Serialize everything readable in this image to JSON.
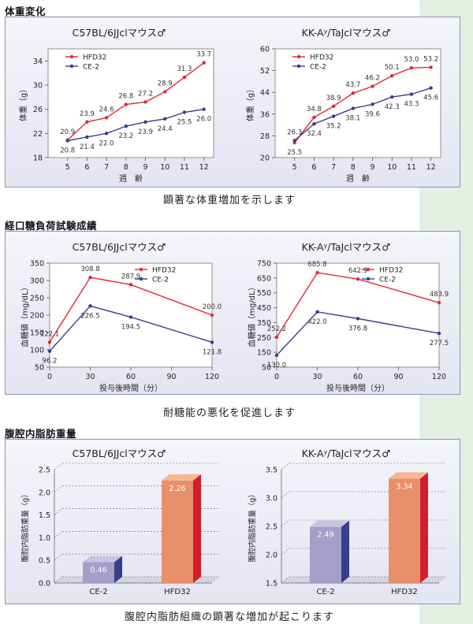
{
  "sections": [
    {
      "title": "体重変化",
      "caption": "顕著な体重増加を示します"
    },
    {
      "title": "経口糖負荷試験成績",
      "caption": "耐糖能の悪化を促進します"
    },
    {
      "title": "腹腔内脂肪重量",
      "caption": "腹腔内脂肪組織の顕著な増加が起こります"
    }
  ],
  "colors": {
    "hfd32": "#e0263a",
    "ce2": "#3a3c8c",
    "bar_ce2": "#a49ec8",
    "bar_hfd32": "#e8906a"
  },
  "chart_data": [
    {
      "type": "line",
      "title": "C57BL/6JJclマウス♂",
      "xlabel": "週　齢",
      "ylabel": "体重（g）",
      "x": [
        5,
        6,
        7,
        8,
        9,
        10,
        11,
        12
      ],
      "xlim": [
        4,
        12.5
      ],
      "ylim": [
        18,
        36
      ],
      "yticks": [
        18,
        22,
        26,
        30,
        34
      ],
      "series": [
        {
          "name": "HFD32",
          "color": "#e0263a",
          "values": [
            20.9,
            23.9,
            24.6,
            26.8,
            27.2,
            28.9,
            31.3,
            33.7
          ]
        },
        {
          "name": "CE-2",
          "color": "#3a3c8c",
          "values": [
            20.8,
            21.4,
            22.0,
            23.2,
            23.9,
            24.4,
            25.5,
            26.0
          ]
        }
      ]
    },
    {
      "type": "line",
      "title": "KK-Aʸ/TaJclマウス♂",
      "xlabel": "週　齢",
      "ylabel": "体重（g）",
      "x": [
        5,
        6,
        7,
        8,
        9,
        10,
        11,
        12
      ],
      "xlim": [
        4,
        12.5
      ],
      "ylim": [
        20,
        60
      ],
      "yticks": [
        20,
        28,
        36,
        44,
        52,
        60
      ],
      "series": [
        {
          "name": "HFD32",
          "color": "#e0263a",
          "values": [
            25.5,
            34.8,
            38.9,
            43.7,
            46.2,
            50.1,
            53.0,
            53.2
          ]
        },
        {
          "name": "CE-2",
          "color": "#3a3c8c",
          "values": [
            26.3,
            32.4,
            35.2,
            38.1,
            39.6,
            42.3,
            43.3,
            45.6
          ]
        }
      ]
    },
    {
      "type": "line",
      "title": "C57BL/6JJclマウス♂",
      "xlabel": "投与後時間（分）",
      "ylabel": "血糖値（mg/dL）",
      "x": [
        0,
        30,
        60,
        120
      ],
      "xlim": [
        0,
        120
      ],
      "ylim": [
        50,
        350
      ],
      "yticks": [
        50,
        100,
        150,
        200,
        250,
        300,
        350
      ],
      "xticks": [
        0,
        30,
        60,
        90,
        120
      ],
      "series": [
        {
          "name": "HFD32",
          "color": "#e0263a",
          "values": [
            122.1,
            308.8,
            287.9,
            200.0
          ]
        },
        {
          "name": "CE-2",
          "color": "#3a3c8c",
          "values": [
            96.2,
            226.5,
            194.5,
            121.8
          ]
        }
      ]
    },
    {
      "type": "line",
      "title": "KK-Aʸ/TaJclマウス♂",
      "xlabel": "投与後時間（分）",
      "ylabel": "血糖値（mg/dL）",
      "x": [
        0,
        30,
        60,
        120
      ],
      "xlim": [
        0,
        120
      ],
      "ylim": [
        50,
        750
      ],
      "yticks": [
        50,
        150,
        250,
        350,
        450,
        550,
        650,
        750
      ],
      "xticks": [
        0,
        30,
        60,
        90,
        120
      ],
      "series": [
        {
          "name": "HFD32",
          "color": "#e0263a",
          "values": [
            252.2,
            685.8,
            642.9,
            483.9
          ]
        },
        {
          "name": "CE-2",
          "color": "#3a3c8c",
          "values": [
            130.0,
            422.0,
            376.8,
            277.5
          ]
        }
      ]
    },
    {
      "type": "bar",
      "title": "C57BL/6JJclマウス♂",
      "ylabel": "腹腔内脂肪重量（g）",
      "categories": [
        "CE-2",
        "HFD32"
      ],
      "values": [
        0.46,
        2.26
      ],
      "ylim": [
        0,
        2.5
      ],
      "yticks": [
        0.0,
        0.5,
        1.0,
        1.5,
        2.0,
        2.5
      ]
    },
    {
      "type": "bar",
      "title": "KK-Aʸ/TaJclマウス♂",
      "ylabel": "腹腔内脂肪重量（g）",
      "categories": [
        "CE-2",
        "HFD32"
      ],
      "values": [
        2.49,
        3.34
      ],
      "ylim": [
        1.5,
        3.5
      ],
      "yticks": [
        1.5,
        2.0,
        2.5,
        3.0,
        3.5
      ]
    }
  ]
}
